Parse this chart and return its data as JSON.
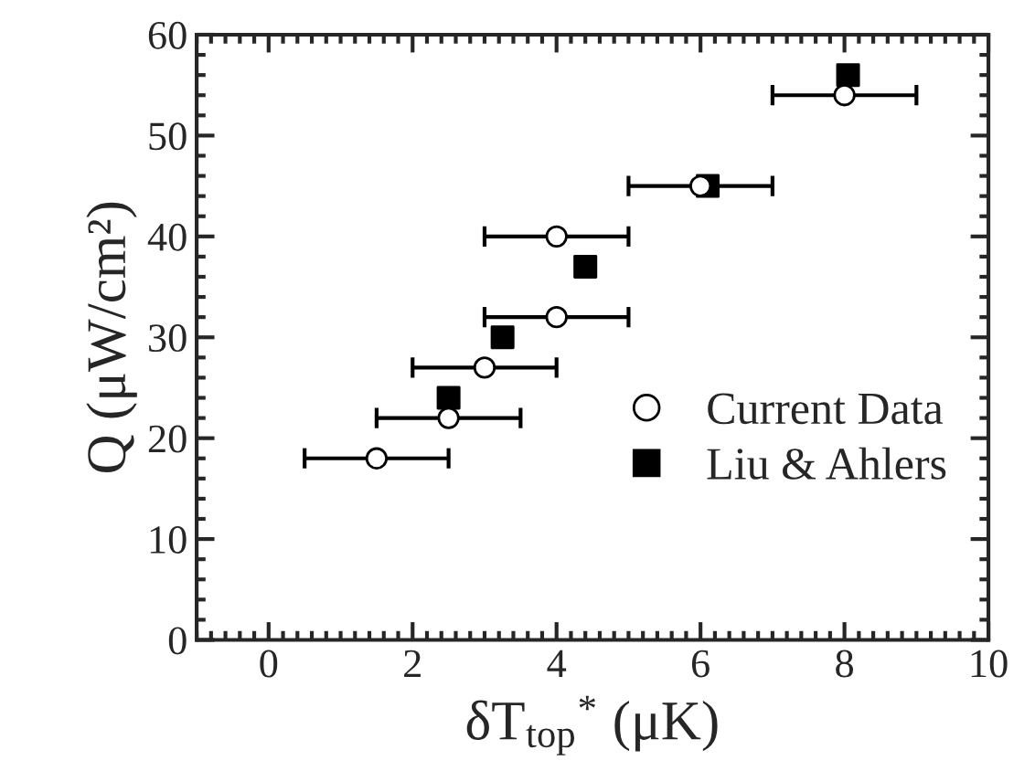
{
  "chart_data": {
    "type": "scatter",
    "xlabel": "δT$_{top}$$^{*}$ (μK)",
    "ylabel": "Q (μW/cm²)",
    "series": [
      {
        "name": "Current Data",
        "color": "#000000",
        "marker": "circle",
        "x": [
          1.5,
          2.5,
          3,
          4,
          4,
          6,
          8
        ],
        "values": [
          18,
          22,
          27,
          32,
          40,
          45,
          54
        ],
        "xerrors": [
          1,
          1,
          1,
          1,
          1,
          1,
          1
        ]
      },
      {
        "name": "Liu & Ahlers",
        "color": "#000000",
        "marker": "square",
        "x": [
          2.5,
          3.25,
          4.4,
          6.1,
          8.05
        ],
        "values": [
          24,
          30,
          37,
          45,
          56
        ]
      }
    ],
    "xlim": [
      -1,
      10
    ],
    "xticks": [
      0,
      2,
      4,
      6,
      8,
      10
    ],
    "ylim": [
      0,
      60
    ],
    "yticks": [
      0,
      10,
      20,
      30,
      40,
      50,
      60
    ],
    "legend": "right",
    "grid": false
  }
}
